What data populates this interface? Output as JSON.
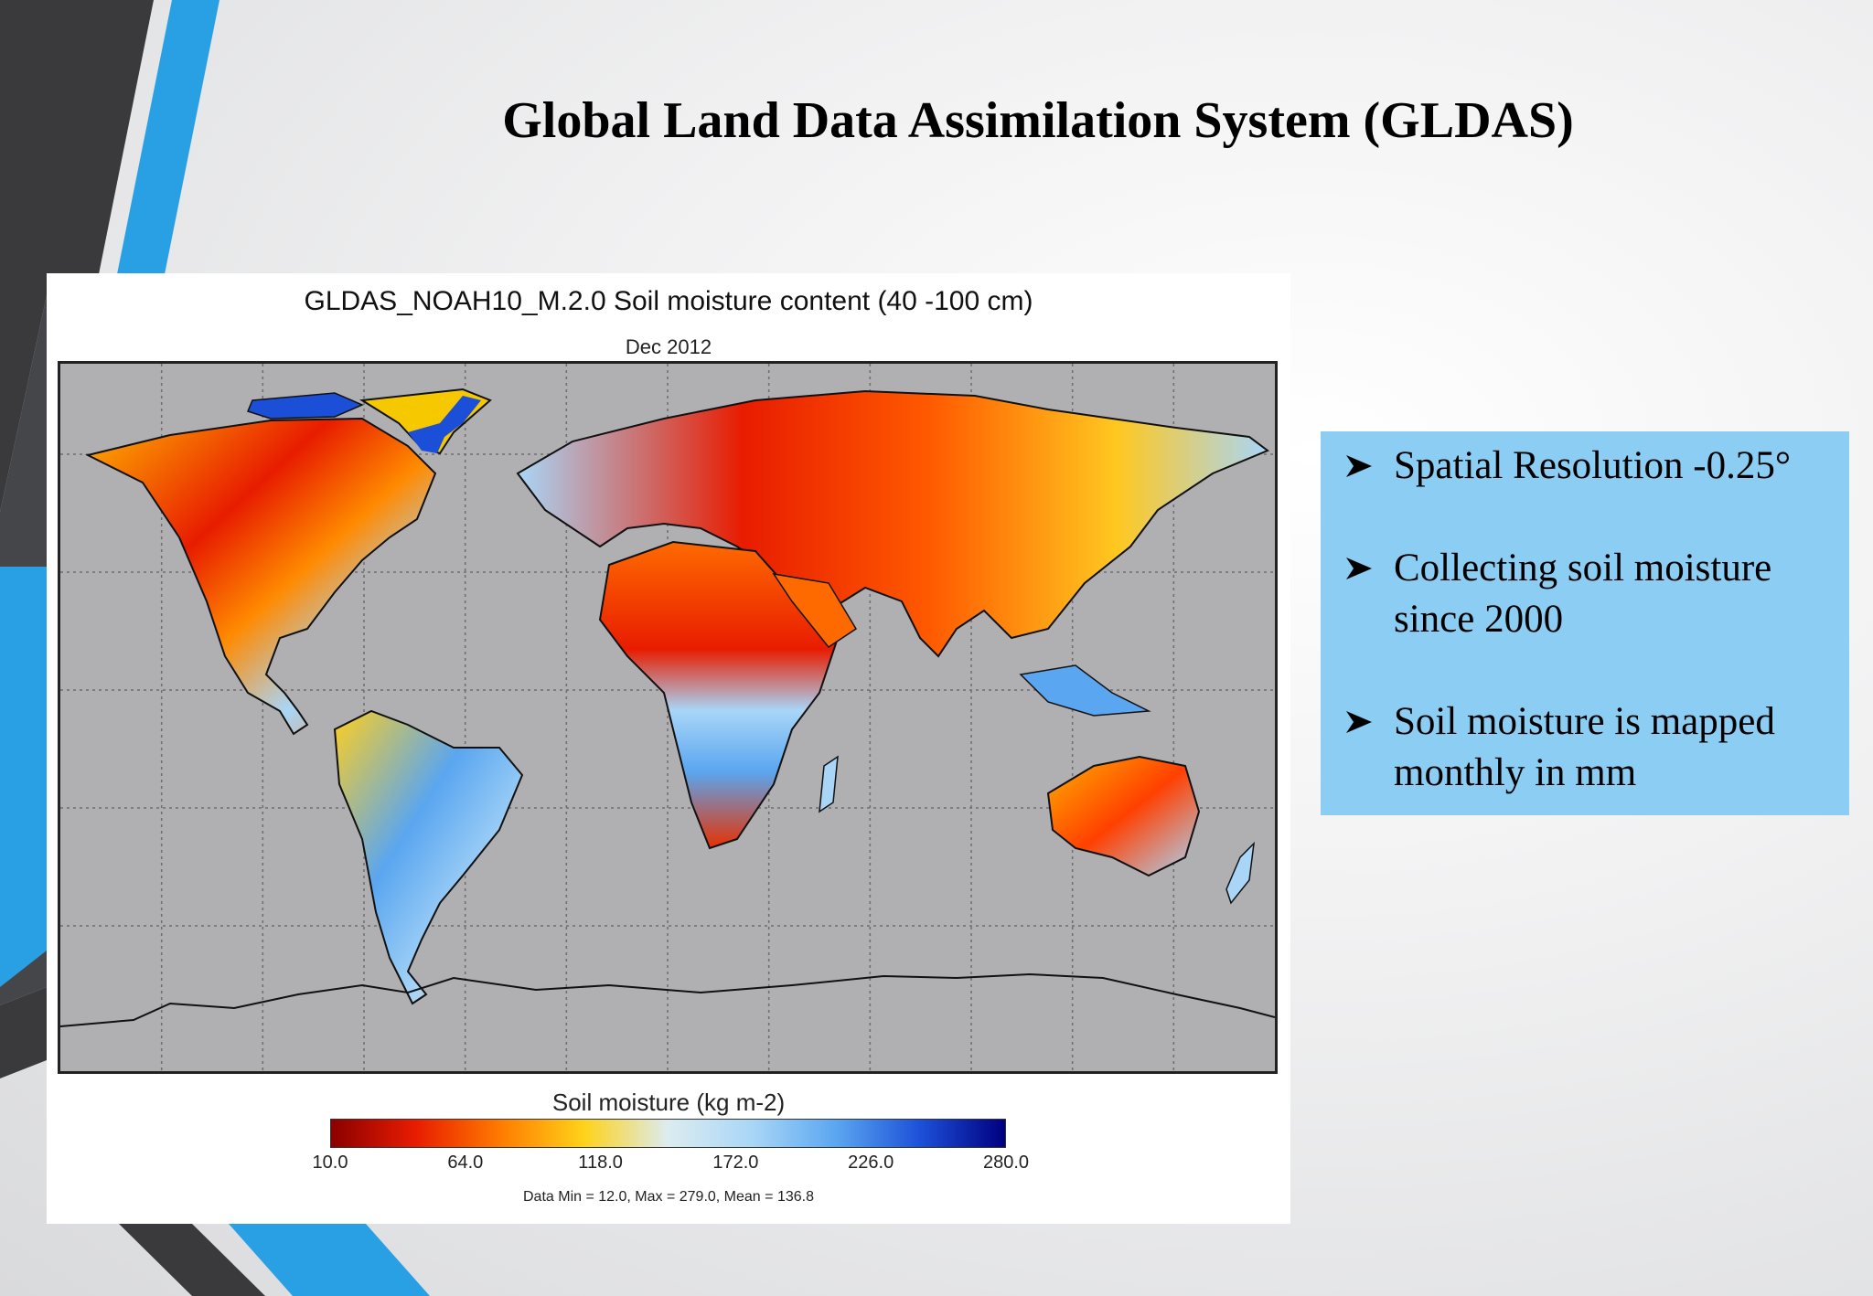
{
  "slide": {
    "title": "Global Land Data Assimilation System (GLDAS)"
  },
  "map": {
    "title": "GLDAS_NOAH10_M.2.0 Soil moisture content (40 -100 cm)",
    "subtitle": "Dec 2012",
    "legend": {
      "title": "Soil moisture (kg m-2)",
      "ticks": [
        "10.0",
        "64.0",
        "118.0",
        "172.0",
        "226.0",
        "280.0"
      ],
      "range": [
        10.0,
        280.0
      ]
    },
    "stats": "Data Min = 12.0, Max = 279.0, Mean = 136.8",
    "colors": {
      "ocean": "#b0b0b2",
      "scale": [
        "#8b0000",
        "#e81c00",
        "#ff7a00",
        "#ffd21a",
        "#dcecf0",
        "#a9d6f7",
        "#5aa6f0",
        "#1c4fd8",
        "#000080"
      ]
    }
  },
  "info_box": {
    "bullets": [
      {
        "lines": [
          "Spatial Resolution -0.25°"
        ]
      },
      {
        "lines": [
          "Collecting soil moisture",
          "since 2000"
        ]
      },
      {
        "lines": [
          "Soil moisture is mapped",
          "monthly in mm"
        ]
      }
    ],
    "background": "#8ccdf3",
    "bullet_icon": "arrowhead-bullet-icon"
  }
}
